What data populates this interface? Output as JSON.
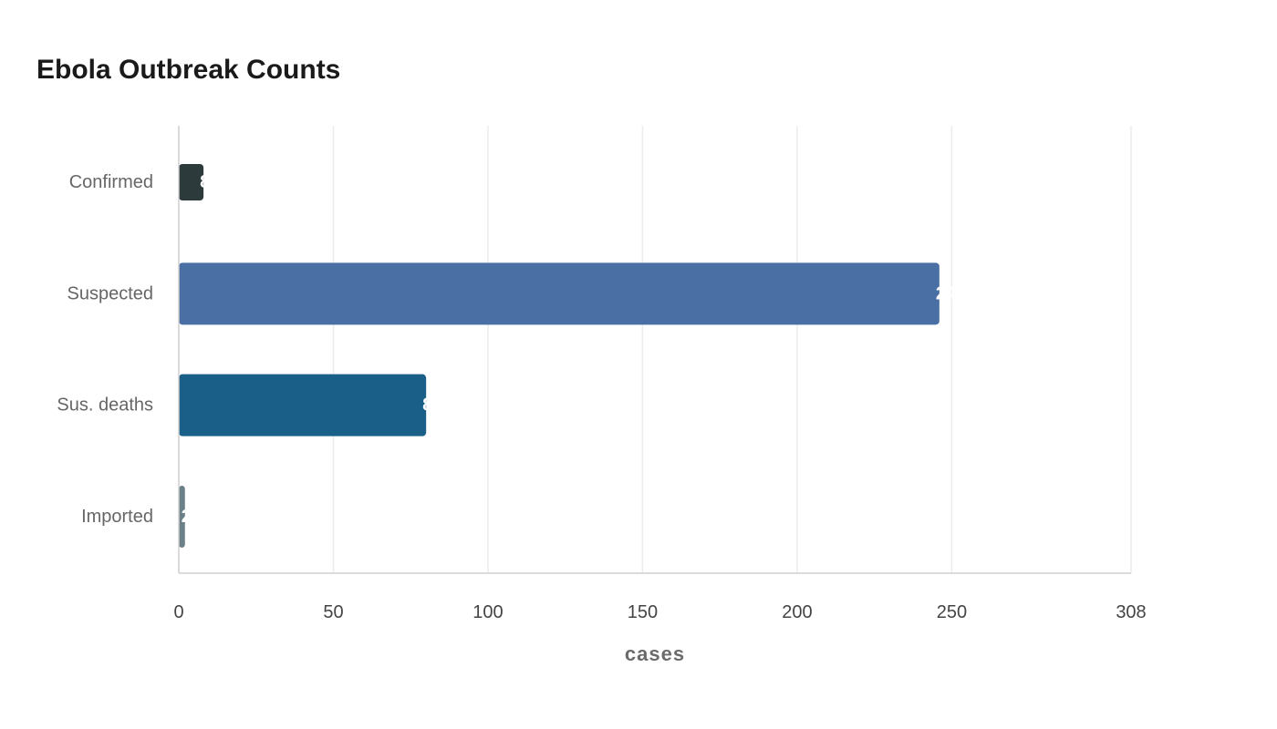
{
  "chart_data": {
    "type": "bar",
    "orientation": "horizontal",
    "title": "Ebola Outbreak Counts",
    "xlabel": "cases",
    "ylabel": "",
    "categories": [
      "Confirmed",
      "Suspected",
      "Sus. deaths",
      "Imported"
    ],
    "values": [
      8,
      246,
      80,
      2
    ],
    "data_labels": [
      "8",
      "246",
      "80",
      "2"
    ],
    "colors": [
      "#2d3a3c",
      "#4a6fa5",
      "#1a5f87",
      "#6c8088"
    ],
    "xlim": [
      0,
      308
    ],
    "xticks": [
      0,
      50,
      100,
      150,
      200,
      250,
      308
    ],
    "xtick_labels": [
      "0",
      "50",
      "100",
      "150",
      "200",
      "250",
      "308"
    ],
    "grid": "vertical",
    "legend": "none"
  }
}
